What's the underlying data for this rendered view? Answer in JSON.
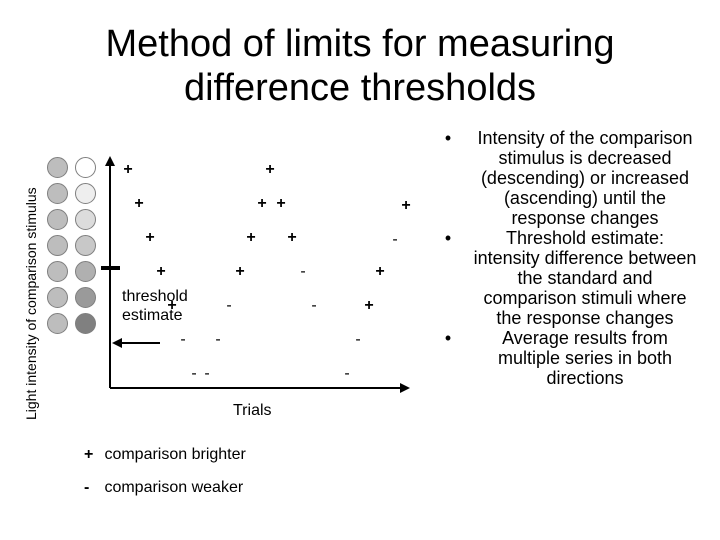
{
  "title": [
    "Method of limits for measuring",
    "difference thresholds"
  ],
  "y_axis_label": "Light intensity of comparison stimulus",
  "x_axis_label": "Trials",
  "comparison_circles": [
    {
      "left": "#bdbdbd",
      "right": "#ffffff"
    },
    {
      "left": "#bdbdbd",
      "right": "#eeeeee"
    },
    {
      "left": "#bdbdbd",
      "right": "#dcdcdc"
    },
    {
      "left": "#bdbdbd",
      "right": "#c8c8c8"
    },
    {
      "left": "#bdbdbd",
      "right": "#b0b0b0"
    },
    {
      "left": "#bdbdbd",
      "right": "#9a9a9a"
    },
    {
      "left": "#bdbdbd",
      "right": "#808080"
    }
  ],
  "threshold_label": [
    "threshold",
    "estimate"
  ],
  "responses": {
    "plus_symbol": "+",
    "minus_symbol": "-",
    "series": [
      {
        "direction": "descending",
        "responses": [
          "+",
          "+",
          "+",
          "+",
          "+",
          "-",
          "-"
        ]
      },
      {
        "direction": "ascending",
        "responses": [
          "-",
          "-",
          "-",
          "+",
          "+",
          "+"
        ]
      },
      {
        "direction": "descending",
        "responses": [
          "+",
          "+",
          "+",
          "-",
          "-"
        ]
      },
      {
        "direction": "ascending",
        "responses": [
          "-",
          "-",
          "+",
          "+"
        ]
      }
    ]
  },
  "legend": [
    {
      "symbol": "+",
      "label": "comparison brighter"
    },
    {
      "symbol": "-",
      "label": "comparison weaker"
    }
  ],
  "bullets": [
    "Intensity of the comparison stimulus is decreased (descending) or increased (ascending) until the response changes",
    "Threshold estimate: intensity difference between the standard and comparison stimuli where the response changes",
    "Average results from multiple series in both directions"
  ],
  "colors": {
    "standard_stimulus": "#bdbdbd",
    "axis": "#000000",
    "circle_border": "#7f7f7f"
  }
}
